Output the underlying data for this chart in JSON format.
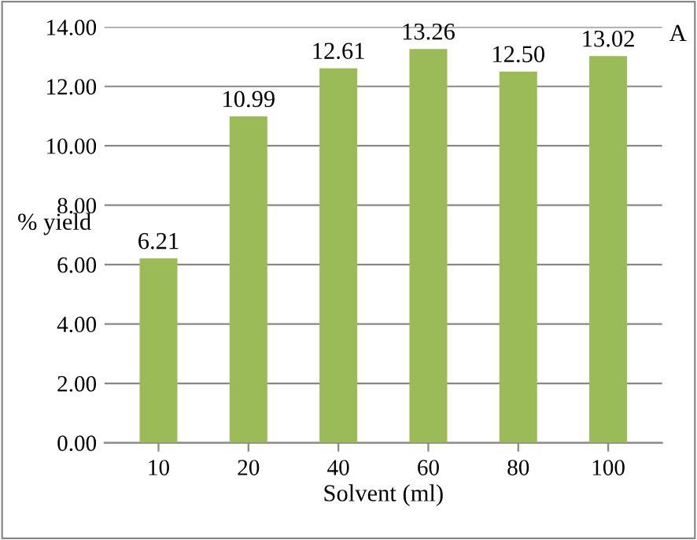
{
  "chart_data": {
    "type": "bar",
    "title": "A",
    "xlabel": "Solvent (ml)",
    "ylabel": "% yield",
    "categories": [
      "10",
      "20",
      "40",
      "60",
      "80",
      "100"
    ],
    "values": [
      6.21,
      10.99,
      12.61,
      13.26,
      12.5,
      13.02
    ],
    "value_labels": [
      "6.21",
      "10.99",
      "12.61",
      "13.26",
      "12.50",
      "13.02"
    ],
    "color": "#9bbb59",
    "ylim": [
      0,
      14
    ],
    "yticks": [
      {
        "value": 0,
        "label": "0.00"
      },
      {
        "value": 2,
        "label": "2.00"
      },
      {
        "value": 4,
        "label": "4.00"
      },
      {
        "value": 6,
        "label": "6.00"
      },
      {
        "value": 8,
        "label": "8.00"
      },
      {
        "value": 10,
        "label": "10.00"
      },
      {
        "value": 12,
        "label": "12.00"
      },
      {
        "value": 14,
        "label": "14.00"
      }
    ],
    "grid": "y"
  }
}
